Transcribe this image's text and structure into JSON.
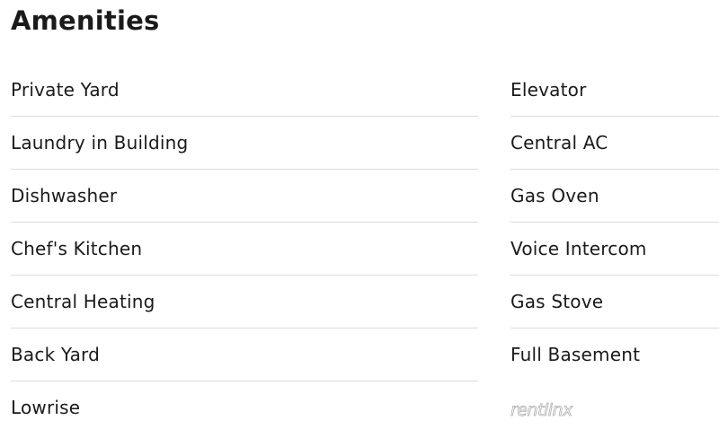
{
  "section": {
    "title": "Amenities"
  },
  "amenities": {
    "left": [
      "Private Yard",
      "Laundry in Building",
      "Dishwasher",
      "Chef's Kitchen",
      "Central Heating",
      "Back Yard",
      "Lowrise"
    ],
    "right": [
      "Elevator",
      "Central AC",
      "Gas Oven",
      "Voice Intercom",
      "Gas Stove",
      "Full Basement"
    ]
  },
  "watermark": {
    "text": "rentlinx"
  }
}
